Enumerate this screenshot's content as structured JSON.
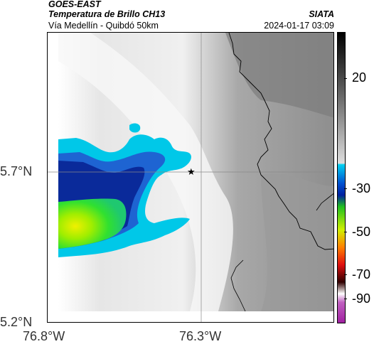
{
  "header": {
    "satellite": "GOES-EAST",
    "product": "Temperatura de Brillo CH13",
    "region": "Vía Medellín - Quibdó 50km",
    "brand": "SIATA",
    "timestamp": "2024-01-17 03:09"
  },
  "axes": {
    "y_ticks": [
      "5.7°N",
      "5.2°N"
    ],
    "x_ticks": [
      "76.8°W",
      "76.3°W"
    ]
  },
  "marker": {
    "icon": "star-icon",
    "glyph": "★"
  },
  "colorbar": {
    "ticks": [
      "20",
      "-30",
      "-50",
      "-70",
      "-90"
    ]
  },
  "colors": {
    "cold_cyan": "#00c8e8",
    "cold_blue": "#0a2a9a",
    "cold_green": "#30e030",
    "cold_yellow": "#f0f000",
    "border_line": "#000000"
  }
}
